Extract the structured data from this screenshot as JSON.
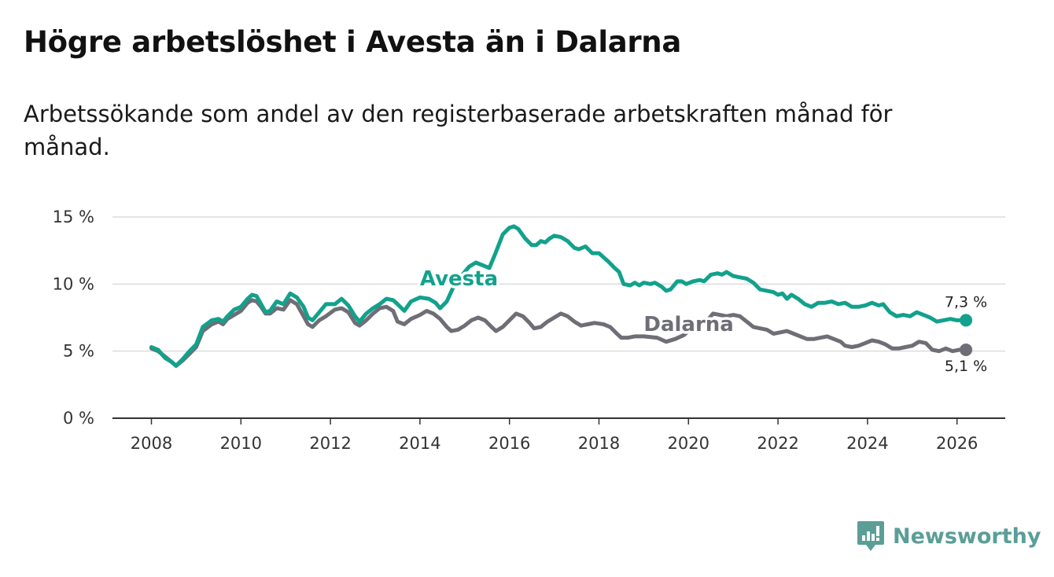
{
  "header": {
    "title": "Högre arbetslöshet i Avesta än i Dalarna",
    "subtitle": "Arbetssökande som andel av den registerbaserade arbetskraften månad för månad."
  },
  "brand": {
    "name": "Newsworthy"
  },
  "colors": {
    "avesta": "#12a18c",
    "dalarna": "#6e6e76",
    "grid": "#dcdcdc",
    "axis": "#333333"
  },
  "chart_data": {
    "type": "line",
    "title": "Högre arbetslöshet i Avesta än i Dalarna",
    "subtitle": "Arbetssökande som andel av den registerbaserade arbetskraften månad för månad.",
    "xlabel": "",
    "ylabel": "",
    "xlim": [
      2008,
      2027
    ],
    "ylim": [
      0,
      15
    ],
    "x_ticks": [
      2008,
      2010,
      2012,
      2014,
      2016,
      2018,
      2020,
      2022,
      2024,
      2026
    ],
    "x_tick_labels": [
      "2008",
      "2010",
      "2012",
      "2014",
      "2016",
      "2018",
      "2020",
      "2022",
      "2024",
      "2026"
    ],
    "y_ticks": [
      0,
      5,
      10,
      15
    ],
    "y_tick_labels": [
      "0 %",
      "5 %",
      "10 %",
      "15 %"
    ],
    "grid": true,
    "series": [
      {
        "name": "Avesta",
        "color": "#12a18c",
        "end_label": "7,3 %",
        "points": [
          [
            2008.0,
            5.3
          ],
          [
            2008.15,
            5.1
          ],
          [
            2008.3,
            4.5
          ],
          [
            2008.45,
            4.2
          ],
          [
            2008.55,
            3.9
          ],
          [
            2008.7,
            4.4
          ],
          [
            2008.85,
            5.0
          ],
          [
            2009.0,
            5.5
          ],
          [
            2009.15,
            6.8
          ],
          [
            2009.35,
            7.3
          ],
          [
            2009.5,
            7.4
          ],
          [
            2009.6,
            7.2
          ],
          [
            2009.7,
            7.6
          ],
          [
            2009.85,
            8.1
          ],
          [
            2010.0,
            8.3
          ],
          [
            2010.15,
            8.9
          ],
          [
            2010.25,
            9.2
          ],
          [
            2010.35,
            9.1
          ],
          [
            2010.45,
            8.5
          ],
          [
            2010.55,
            7.9
          ],
          [
            2010.65,
            8.0
          ],
          [
            2010.8,
            8.7
          ],
          [
            2010.95,
            8.5
          ],
          [
            2011.1,
            9.3
          ],
          [
            2011.25,
            9.0
          ],
          [
            2011.4,
            8.3
          ],
          [
            2011.5,
            7.5
          ],
          [
            2011.6,
            7.3
          ],
          [
            2011.75,
            7.9
          ],
          [
            2011.9,
            8.5
          ],
          [
            2012.1,
            8.5
          ],
          [
            2012.25,
            8.9
          ],
          [
            2012.4,
            8.4
          ],
          [
            2012.55,
            7.6
          ],
          [
            2012.65,
            7.2
          ],
          [
            2012.8,
            7.8
          ],
          [
            2012.95,
            8.2
          ],
          [
            2013.1,
            8.5
          ],
          [
            2013.25,
            8.9
          ],
          [
            2013.4,
            8.8
          ],
          [
            2013.5,
            8.5
          ],
          [
            2013.65,
            8.0
          ],
          [
            2013.8,
            8.7
          ],
          [
            2014.0,
            9.0
          ],
          [
            2014.2,
            8.9
          ],
          [
            2014.35,
            8.6
          ],
          [
            2014.45,
            8.2
          ],
          [
            2014.6,
            8.7
          ],
          [
            2014.75,
            9.8
          ],
          [
            2014.95,
            10.7
          ],
          [
            2015.1,
            11.3
          ],
          [
            2015.25,
            11.6
          ],
          [
            2015.4,
            11.4
          ],
          [
            2015.55,
            11.2
          ],
          [
            2015.7,
            12.4
          ],
          [
            2015.85,
            13.7
          ],
          [
            2016.0,
            14.2
          ],
          [
            2016.1,
            14.3
          ],
          [
            2016.2,
            14.1
          ],
          [
            2016.35,
            13.4
          ],
          [
            2016.5,
            12.9
          ],
          [
            2016.6,
            12.9
          ],
          [
            2016.7,
            13.2
          ],
          [
            2016.8,
            13.1
          ],
          [
            2016.9,
            13.4
          ],
          [
            2017.0,
            13.6
          ],
          [
            2017.15,
            13.5
          ],
          [
            2017.3,
            13.2
          ],
          [
            2017.45,
            12.7
          ],
          [
            2017.55,
            12.6
          ],
          [
            2017.7,
            12.8
          ],
          [
            2017.85,
            12.3
          ],
          [
            2018.0,
            12.3
          ],
          [
            2018.1,
            12.0
          ],
          [
            2018.2,
            11.7
          ],
          [
            2018.35,
            11.2
          ],
          [
            2018.45,
            10.9
          ],
          [
            2018.55,
            10.0
          ],
          [
            2018.7,
            9.9
          ],
          [
            2018.8,
            10.1
          ],
          [
            2018.9,
            9.9
          ],
          [
            2019.0,
            10.1
          ],
          [
            2019.15,
            10.0
          ],
          [
            2019.25,
            10.1
          ],
          [
            2019.4,
            9.8
          ],
          [
            2019.5,
            9.5
          ],
          [
            2019.6,
            9.6
          ],
          [
            2019.75,
            10.2
          ],
          [
            2019.85,
            10.2
          ],
          [
            2019.95,
            10.0
          ],
          [
            2020.1,
            10.2
          ],
          [
            2020.25,
            10.3
          ],
          [
            2020.35,
            10.2
          ],
          [
            2020.5,
            10.7
          ],
          [
            2020.65,
            10.8
          ],
          [
            2020.75,
            10.7
          ],
          [
            2020.85,
            10.9
          ],
          [
            2021.0,
            10.6
          ],
          [
            2021.15,
            10.5
          ],
          [
            2021.3,
            10.4
          ],
          [
            2021.45,
            10.1
          ],
          [
            2021.6,
            9.6
          ],
          [
            2021.75,
            9.5
          ],
          [
            2021.9,
            9.4
          ],
          [
            2022.0,
            9.2
          ],
          [
            2022.1,
            9.3
          ],
          [
            2022.2,
            8.9
          ],
          [
            2022.3,
            9.2
          ],
          [
            2022.45,
            8.9
          ],
          [
            2022.6,
            8.5
          ],
          [
            2022.75,
            8.3
          ],
          [
            2022.9,
            8.6
          ],
          [
            2023.05,
            8.6
          ],
          [
            2023.2,
            8.7
          ],
          [
            2023.35,
            8.5
          ],
          [
            2023.5,
            8.6
          ],
          [
            2023.65,
            8.3
          ],
          [
            2023.8,
            8.3
          ],
          [
            2023.95,
            8.4
          ],
          [
            2024.1,
            8.6
          ],
          [
            2024.25,
            8.4
          ],
          [
            2024.35,
            8.5
          ],
          [
            2024.5,
            7.9
          ],
          [
            2024.65,
            7.6
          ],
          [
            2024.8,
            7.7
          ],
          [
            2024.95,
            7.6
          ],
          [
            2025.1,
            7.9
          ],
          [
            2025.25,
            7.7
          ],
          [
            2025.4,
            7.5
          ],
          [
            2025.55,
            7.2
          ],
          [
            2025.7,
            7.3
          ],
          [
            2025.85,
            7.4
          ],
          [
            2026.0,
            7.3
          ],
          [
            2026.2,
            7.3
          ]
        ]
      },
      {
        "name": "Dalarna",
        "color": "#6e6e76",
        "end_label": "5,1 %",
        "points": [
          [
            2008.0,
            5.2
          ],
          [
            2008.15,
            5.0
          ],
          [
            2008.3,
            4.6
          ],
          [
            2008.45,
            4.2
          ],
          [
            2008.55,
            3.9
          ],
          [
            2008.7,
            4.3
          ],
          [
            2008.85,
            4.8
          ],
          [
            2009.0,
            5.3
          ],
          [
            2009.15,
            6.5
          ],
          [
            2009.35,
            7.0
          ],
          [
            2009.5,
            7.2
          ],
          [
            2009.6,
            7.0
          ],
          [
            2009.7,
            7.4
          ],
          [
            2009.85,
            7.7
          ],
          [
            2010.0,
            8.0
          ],
          [
            2010.15,
            8.6
          ],
          [
            2010.25,
            8.8
          ],
          [
            2010.35,
            8.7
          ],
          [
            2010.45,
            8.3
          ],
          [
            2010.55,
            7.8
          ],
          [
            2010.65,
            7.8
          ],
          [
            2010.8,
            8.2
          ],
          [
            2010.95,
            8.1
          ],
          [
            2011.1,
            8.8
          ],
          [
            2011.25,
            8.5
          ],
          [
            2011.4,
            7.6
          ],
          [
            2011.5,
            7.0
          ],
          [
            2011.6,
            6.8
          ],
          [
            2011.75,
            7.3
          ],
          [
            2011.9,
            7.6
          ],
          [
            2012.1,
            8.1
          ],
          [
            2012.25,
            8.2
          ],
          [
            2012.4,
            7.9
          ],
          [
            2012.55,
            7.1
          ],
          [
            2012.65,
            6.9
          ],
          [
            2012.8,
            7.3
          ],
          [
            2012.95,
            7.8
          ],
          [
            2013.1,
            8.2
          ],
          [
            2013.25,
            8.3
          ],
          [
            2013.4,
            8.0
          ],
          [
            2013.5,
            7.2
          ],
          [
            2013.65,
            7.0
          ],
          [
            2013.8,
            7.4
          ],
          [
            2014.0,
            7.7
          ],
          [
            2014.15,
            8.0
          ],
          [
            2014.3,
            7.8
          ],
          [
            2014.45,
            7.4
          ],
          [
            2014.6,
            6.8
          ],
          [
            2014.7,
            6.5
          ],
          [
            2014.85,
            6.6
          ],
          [
            2015.0,
            6.9
          ],
          [
            2015.15,
            7.3
          ],
          [
            2015.3,
            7.5
          ],
          [
            2015.45,
            7.3
          ],
          [
            2015.6,
            6.8
          ],
          [
            2015.7,
            6.5
          ],
          [
            2015.85,
            6.8
          ],
          [
            2016.0,
            7.3
          ],
          [
            2016.15,
            7.8
          ],
          [
            2016.3,
            7.6
          ],
          [
            2016.45,
            7.1
          ],
          [
            2016.55,
            6.7
          ],
          [
            2016.7,
            6.8
          ],
          [
            2016.85,
            7.2
          ],
          [
            2017.0,
            7.5
          ],
          [
            2017.15,
            7.8
          ],
          [
            2017.3,
            7.6
          ],
          [
            2017.45,
            7.2
          ],
          [
            2017.6,
            6.9
          ],
          [
            2017.75,
            7.0
          ],
          [
            2017.9,
            7.1
          ],
          [
            2018.1,
            7.0
          ],
          [
            2018.25,
            6.8
          ],
          [
            2018.4,
            6.3
          ],
          [
            2018.5,
            6.0
          ],
          [
            2018.65,
            6.0
          ],
          [
            2018.8,
            6.1
          ],
          [
            2019.0,
            6.1
          ],
          [
            2019.3,
            6.0
          ],
          [
            2019.5,
            5.7
          ],
          [
            2019.7,
            5.9
          ],
          [
            2019.9,
            6.2
          ],
          [
            2020.1,
            6.8
          ],
          [
            2020.3,
            7.2
          ],
          [
            2020.45,
            7.4
          ],
          [
            2020.55,
            7.8
          ],
          [
            2020.7,
            7.7
          ],
          [
            2020.85,
            7.6
          ],
          [
            2021.0,
            7.7
          ],
          [
            2021.15,
            7.6
          ],
          [
            2021.3,
            7.2
          ],
          [
            2021.45,
            6.8
          ],
          [
            2021.6,
            6.7
          ],
          [
            2021.75,
            6.6
          ],
          [
            2021.9,
            6.3
          ],
          [
            2022.05,
            6.4
          ],
          [
            2022.2,
            6.5
          ],
          [
            2022.35,
            6.3
          ],
          [
            2022.5,
            6.1
          ],
          [
            2022.65,
            5.9
          ],
          [
            2022.8,
            5.9
          ],
          [
            2022.95,
            6.0
          ],
          [
            2023.1,
            6.1
          ],
          [
            2023.25,
            5.9
          ],
          [
            2023.4,
            5.7
          ],
          [
            2023.5,
            5.4
          ],
          [
            2023.65,
            5.3
          ],
          [
            2023.8,
            5.4
          ],
          [
            2023.95,
            5.6
          ],
          [
            2024.1,
            5.8
          ],
          [
            2024.25,
            5.7
          ],
          [
            2024.4,
            5.5
          ],
          [
            2024.55,
            5.2
          ],
          [
            2024.7,
            5.2
          ],
          [
            2024.85,
            5.3
          ],
          [
            2025.0,
            5.4
          ],
          [
            2025.15,
            5.7
          ],
          [
            2025.3,
            5.6
          ],
          [
            2025.45,
            5.1
          ],
          [
            2025.6,
            5.0
          ],
          [
            2025.75,
            5.2
          ],
          [
            2025.9,
            5.0
          ],
          [
            2026.05,
            5.1
          ],
          [
            2026.2,
            5.1
          ]
        ]
      }
    ],
    "series_labels": [
      {
        "text": "Avesta",
        "series": "Avesta",
        "x": 2014.0,
        "y": 9.9
      },
      {
        "text": "Dalarna",
        "series": "Dalarna",
        "x": 2019.0,
        "y": 6.5
      }
    ]
  }
}
